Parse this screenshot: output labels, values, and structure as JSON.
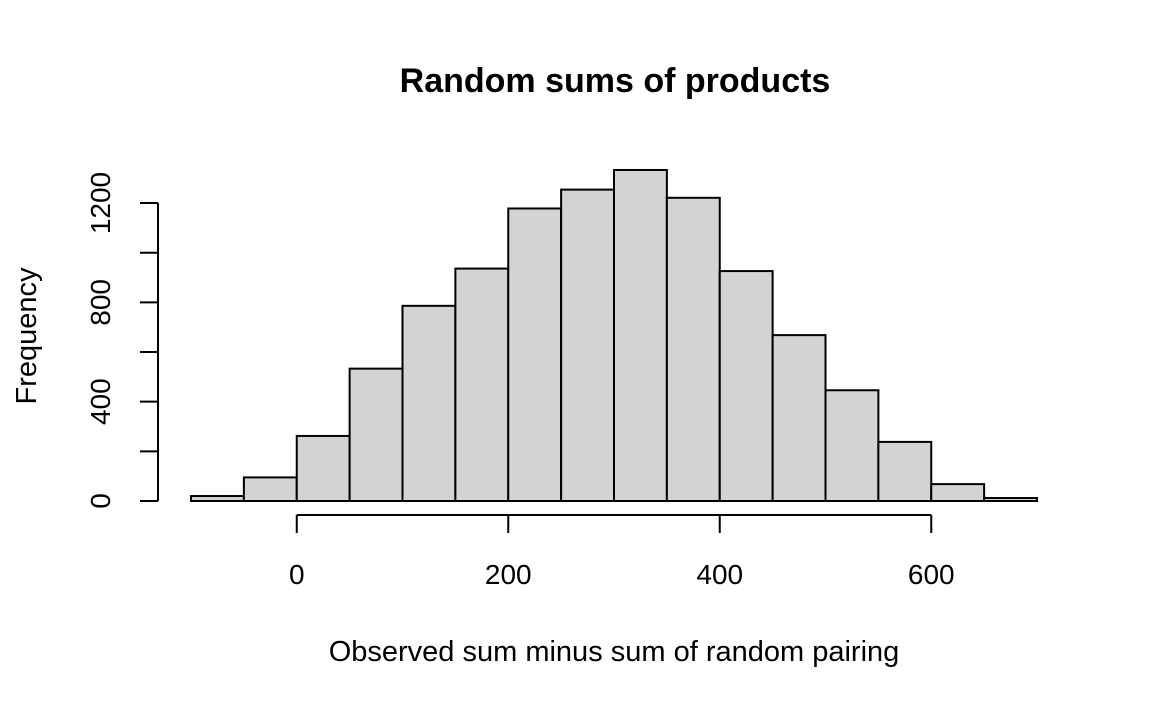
{
  "chart_data": {
    "type": "bar",
    "title": "Random sums of products",
    "xlabel": "Observed sum minus sum of random pairing",
    "ylabel": "Frequency",
    "bin_edges": [
      -100,
      -50,
      0,
      50,
      100,
      150,
      200,
      250,
      300,
      350,
      400,
      450,
      500,
      550,
      600,
      650,
      700
    ],
    "values": [
      20,
      95,
      262,
      533,
      786,
      936,
      1178,
      1254,
      1333,
      1221,
      926,
      668,
      446,
      238,
      68,
      12
    ],
    "xlim": [
      -100,
      700
    ],
    "ylim": [
      0,
      1333
    ],
    "xticks": [
      0,
      200,
      400,
      600
    ],
    "xtick_labels": [
      "0",
      "200",
      "400",
      "600"
    ],
    "yticks": [
      0,
      200,
      400,
      600,
      800,
      1000,
      1200
    ],
    "ytick_labels": [
      "0",
      "400",
      "800",
      "1200"
    ],
    "ytick_label_values": [
      0,
      400,
      800,
      1200
    ],
    "bar_color": "#d3d3d3",
    "grid": false,
    "legend": "none"
  }
}
